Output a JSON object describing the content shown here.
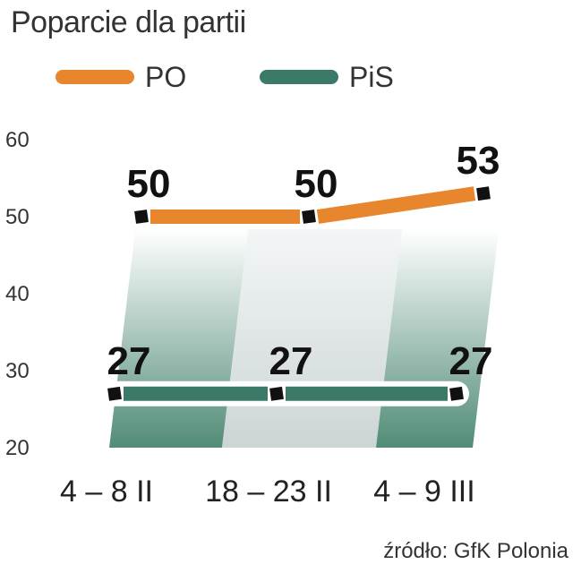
{
  "title": "Poparcie dla partii",
  "source": "źródło: GfK Polonia",
  "colors": {
    "PO": "#e8862e",
    "PiS": "#3b7a68"
  },
  "chart_data": {
    "type": "line",
    "title": "Poparcie dla partii",
    "categories": [
      "4 – 8 II",
      "18 – 23 II",
      "4 – 9 III"
    ],
    "series": [
      {
        "name": "PO",
        "values": [
          50,
          50,
          53
        ],
        "labels": [
          "50",
          "50",
          "53"
        ]
      },
      {
        "name": "PiS",
        "values": [
          27,
          27,
          27
        ],
        "labels": [
          "27",
          "27",
          "27"
        ]
      }
    ],
    "ylim": [
      20,
      60
    ],
    "yticks": [
      "60",
      "50",
      "40",
      "30",
      "20"
    ],
    "legend": "top-left",
    "grid": false
  }
}
